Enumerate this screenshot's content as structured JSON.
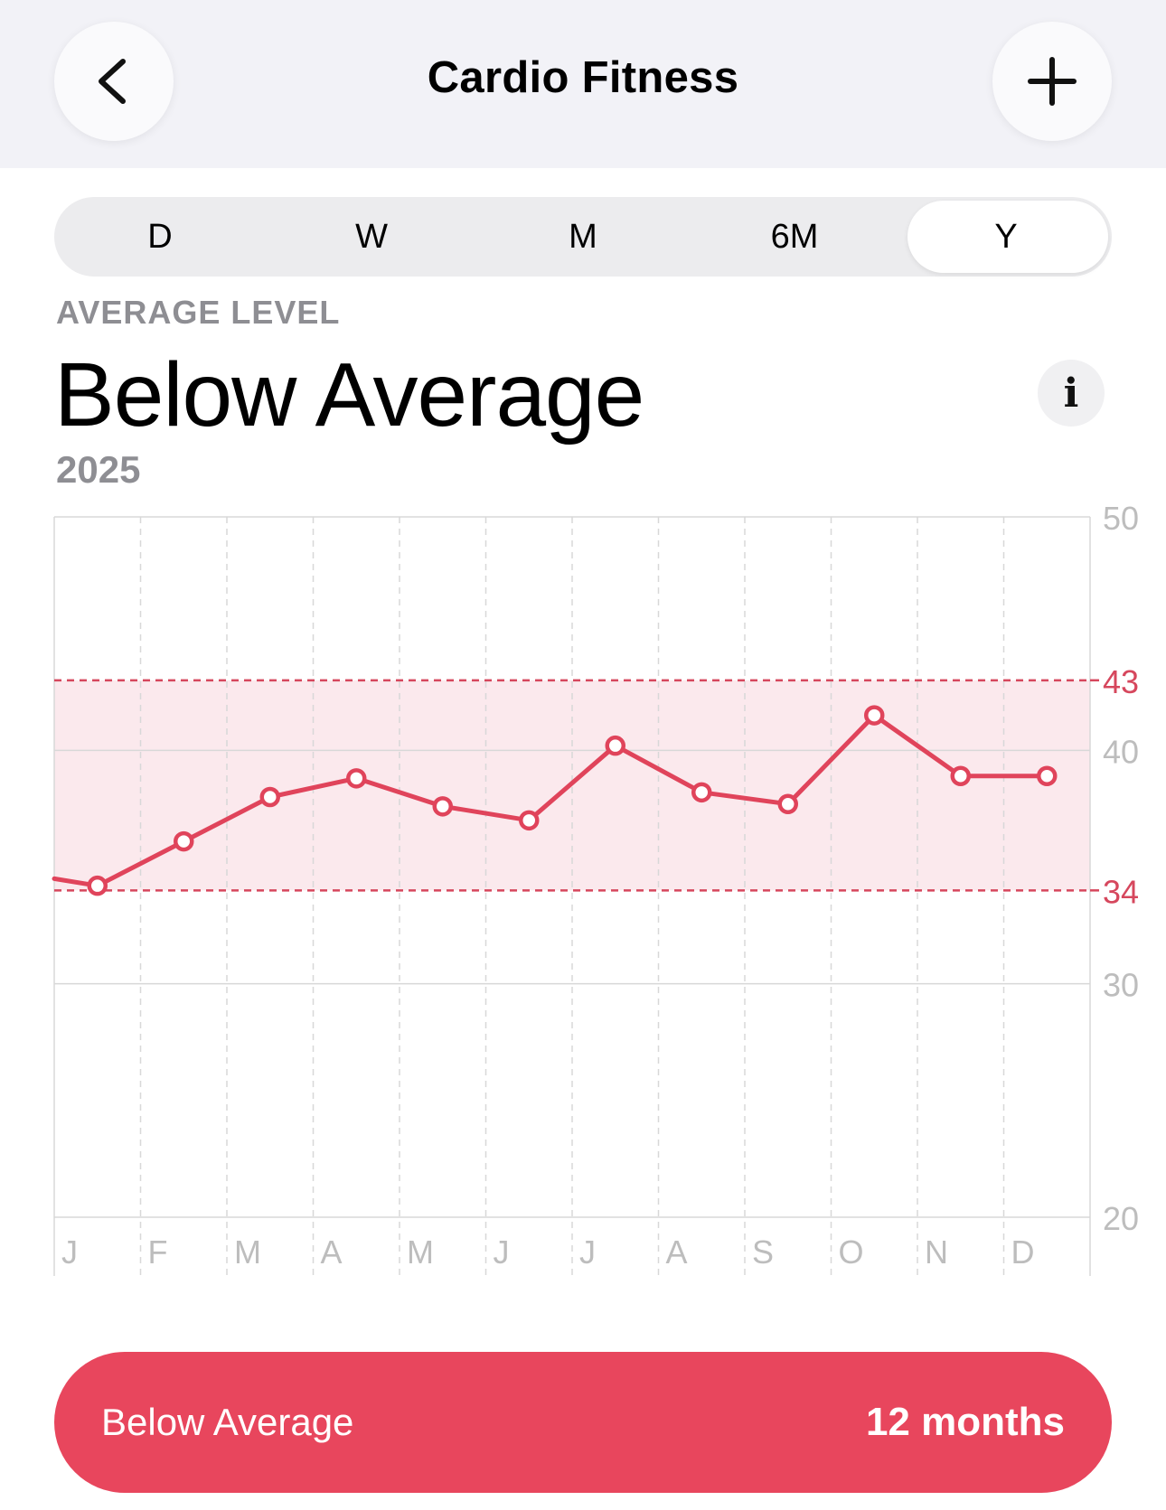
{
  "header": {
    "title": "Cardio Fitness",
    "back_icon": "chevron-left-icon",
    "add_icon": "plus-icon"
  },
  "segments": [
    "D",
    "W",
    "M",
    "6M",
    "Y"
  ],
  "selected_segment": "Y",
  "summary": {
    "kicker": "AVERAGE LEVEL",
    "level": "Below Average",
    "period": "2025",
    "info_glyph": "i"
  },
  "chart_data": {
    "type": "line",
    "categories": [
      "J",
      "F",
      "M",
      "A",
      "M",
      "J",
      "J",
      "A",
      "S",
      "O",
      "N",
      "D"
    ],
    "values": [
      34.2,
      36.1,
      38.0,
      38.8,
      37.6,
      37.0,
      40.2,
      38.2,
      37.7,
      41.5,
      38.9,
      38.9
    ],
    "lead_in_value": 34.5,
    "y_ticks": [
      20,
      30,
      40,
      50
    ],
    "ylim": [
      20,
      50
    ],
    "range_band": {
      "low": 34,
      "high": 43
    },
    "grid": true,
    "colors": {
      "line": "#e0445b",
      "band": "#fbe9ed",
      "band_label": "#d6475d",
      "grid": "#d8d8d8",
      "tick": "#bdbdbd"
    }
  },
  "footer_pill": {
    "label": "Below Average",
    "duration": "12 months",
    "color": "#e8465d"
  }
}
